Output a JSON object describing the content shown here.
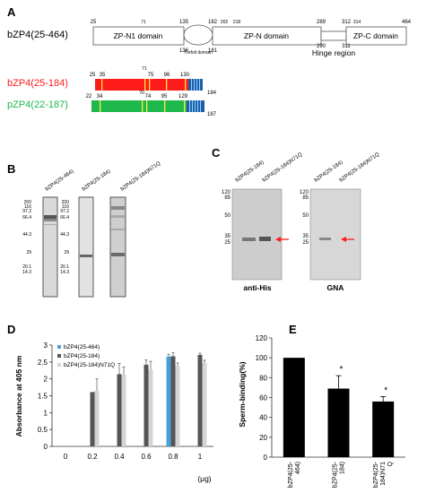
{
  "panels": {
    "A": "A",
    "B": "B",
    "C": "C",
    "D": "D",
    "E": "E"
  },
  "panelA": {
    "construct_label": "bZP4(25-464)",
    "domains": [
      "ZP-N1 domain",
      "Trefoil domain",
      "ZP-N domain",
      "Hinge region",
      "ZP-C domain"
    ],
    "top_numbers": [
      "25",
      "71",
      "135",
      "182",
      "202",
      "218",
      "289",
      "312",
      "314",
      "464"
    ],
    "lower_numbers": [
      "136",
      "181",
      "290",
      "311"
    ],
    "red_label": "bZP4(25-184)",
    "red_numbers": [
      "25",
      "35",
      "71",
      "75",
      "96",
      "130",
      "184"
    ],
    "green_label": "pZP4(22-187)",
    "green_numbers": [
      "22",
      "34",
      "70",
      "74",
      "95",
      "129",
      "187"
    ],
    "colors": {
      "red": "#ff1a1a",
      "green": "#1fb84c",
      "blue": "#1f5fa8",
      "yellow": "#ffe94a"
    }
  },
  "panelB": {
    "lanes": [
      "bZP4(25-464)",
      "bZP4(25-184)",
      "bZP4(25-184)N71Q"
    ],
    "markers": [
      "200",
      "116",
      "97.2",
      "66.4",
      "44.3",
      "29",
      "20.1",
      "14.3"
    ]
  },
  "panelC": {
    "lanes": [
      "bZP4(25-184)",
      "bZP4(25-184)N71Q",
      "bZP4(25-184)",
      "bZP4(25-184)N71Q"
    ],
    "markers": [
      "120",
      "85",
      "50",
      "35",
      "25"
    ],
    "blot_labels": [
      "anti-His",
      "GNA"
    ]
  },
  "chart_data": [
    {
      "type": "bar",
      "ylabel": "Absorbance at 405 nm",
      "xunit": "(μg)",
      "categories": [
        "0",
        "0.2",
        "0.4",
        "0.6",
        "0.8",
        "1"
      ],
      "ylim": [
        0,
        3
      ],
      "yticks": [
        "0",
        "0.5",
        "1",
        "1.5",
        "2",
        "2.5",
        "3"
      ],
      "legend_position": "top-left",
      "series": [
        {
          "name": "bZP4(25-464)",
          "color": "#4a9fd8",
          "values": [
            0,
            0,
            0,
            0,
            2.66,
            0
          ],
          "errors": [
            0,
            0,
            0,
            0,
            0.07,
            0
          ]
        },
        {
          "name": "bZP4(25-184)",
          "color": "#555555",
          "values": [
            0,
            1.61,
            2.14,
            2.42,
            2.67,
            2.71
          ],
          "errors": [
            0,
            0,
            0.32,
            0.14,
            0.1,
            0.05
          ]
        },
        {
          "name": "bZP4(25-184)N71Q",
          "color": "#d4d4d4",
          "values": [
            0,
            1.66,
            2.13,
            2.27,
            2.38,
            2.47
          ],
          "errors": [
            0,
            0.34,
            0.22,
            0.25,
            0.09,
            0.08
          ]
        }
      ]
    },
    {
      "type": "bar",
      "ylabel": "Sperm-binding(%)",
      "categories": [
        "bZP4(25-464)",
        "bZP4(25-184)",
        "bZP4(25-184)N71Q"
      ],
      "category_lines": [
        [
          "bZP4(25-",
          "464)"
        ],
        [
          "bZP4(25-",
          "184)"
        ],
        [
          "bZP4(25-",
          "184)N71",
          "Q"
        ]
      ],
      "values": [
        100,
        69,
        56
      ],
      "errors": [
        0,
        13,
        5
      ],
      "significance": [
        "",
        "*",
        "*"
      ],
      "ylim": [
        0,
        120
      ],
      "yticks": [
        "0",
        "20",
        "40",
        "60",
        "80",
        "100",
        "120"
      ]
    }
  ]
}
